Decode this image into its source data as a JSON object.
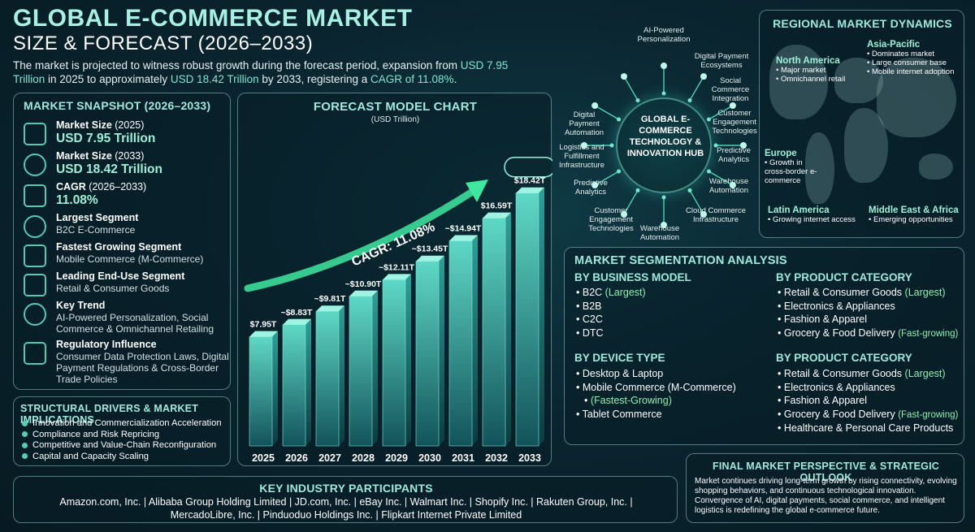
{
  "header": {
    "title_line1": "GLOBAL E-COMMERCE MARKET",
    "title_line2": "SIZE & FORECAST (2026–2033)",
    "intro_a": "The market is projected to witness robust growth during the forecast period, expansion from ",
    "intro_hl1": "USD 7.95 Trillion",
    "intro_b": " in 2025 to approximately ",
    "intro_hl2": "USD 18.42 Trillion",
    "intro_c": " by 2033, registering a ",
    "intro_hl3": "CAGR of 11.08%",
    "intro_d": "."
  },
  "snapshot": {
    "title": "MARKET SNAPSHOT (2026–2033)",
    "items": [
      {
        "icon": "bar-chart-icon",
        "label": "Market Size",
        "paren": "(2025)",
        "value": "USD 7.95 Trillion"
      },
      {
        "icon": "dollar-coins-icon",
        "label": "Market Size",
        "paren": "(2033)",
        "value": "USD 18.42 Trillion"
      },
      {
        "icon": "growth-chart-icon",
        "label": "CAGR",
        "paren": "(2026–2033)",
        "value": "11.08%"
      },
      {
        "icon": "speedometer-icon",
        "label": "Largest Segment",
        "paren": "",
        "sub": "B2C E-Commerce"
      },
      {
        "icon": "rocket-icon",
        "label": "Fastest Growing Segment",
        "paren": "",
        "sub": "Mobile Commerce (M-Commerce)"
      },
      {
        "icon": "shopping-cart-icon",
        "label": "Leading End-Use Segment",
        "paren": "",
        "sub": "Retail & Consumer Goods"
      },
      {
        "icon": "trend-badge-icon",
        "label": "Key Trend",
        "paren": "",
        "sub": "AI-Powered Personalization, Social Commerce & Omnichannel Retailing"
      },
      {
        "icon": "document-shield-icon",
        "label": "Regulatory Influence",
        "paren": "",
        "sub": "Consumer Data Protection Laws, Digital Payment Regulations & Cross-Border Trade Policies"
      }
    ]
  },
  "drivers": {
    "title": "STRUCTURAL DRIVERS & MARKET IMPLICATIONS",
    "items": [
      "Innovation and Commercialization Acceleration",
      "Compliance and Risk Repricing",
      "Competitive and Value-Chain Reconfiguration",
      "Capital and Capacity Scaling"
    ]
  },
  "chart_data": {
    "type": "bar",
    "title": "FORECAST MODEL CHART",
    "subtitle": "(USD Trillion)",
    "categories": [
      "2025",
      "2026",
      "2027",
      "2028",
      "2029",
      "2030",
      "2031",
      "2032",
      "2033"
    ],
    "values": [
      7.95,
      8.83,
      9.81,
      10.9,
      12.11,
      13.45,
      14.94,
      16.59,
      18.42
    ],
    "data_labels": [
      "$7.95T",
      "~$8.83T",
      "~$9.81T",
      "~$10.90T",
      "~$12.11T",
      "~$13.45T",
      "~$14.94T",
      "$16.59T",
      "$18.42T"
    ],
    "annotation": "CAGR: 11.08%",
    "ylim": [
      0,
      20
    ],
    "grid": false,
    "colors": {
      "bar": "#2aa7a0",
      "bar_top": "#9ff3e3",
      "arrow": "#3fe8a0"
    }
  },
  "hub": {
    "center_text": "GLOBAL E-COMMERCE TECHNOLOGY & INNOVATION HUB",
    "labels": [
      "AI-Powered Personalization",
      "Digital Payment Ecosystems",
      "Social Commerce Integration",
      "Customer Engagement Technologies",
      "Predictive Analytics",
      "Warehouse Automation",
      "Cloud Commerce Infrastructure",
      "Warehouse Automation",
      "Customer Engagement Technologies",
      "Predictive Analytics",
      "Logistics and Fulfillment Infrastructure",
      "Digital Payment Automation"
    ]
  },
  "regional": {
    "title": "REGIONAL MARKET DYNAMICS",
    "regions": [
      {
        "name": "North America",
        "points": [
          "Major market",
          "Omnichannel retail"
        ]
      },
      {
        "name": "Asia-Pacific",
        "points": [
          "Dominates market",
          "Large consumer base",
          "Mobile internet adoption"
        ]
      },
      {
        "name": "Europe",
        "points": [
          "Growth in cross-border e-commerce"
        ]
      },
      {
        "name": "Latin America",
        "points": [
          "Growing internet access"
        ]
      },
      {
        "name": "Middle East & Africa",
        "points": [
          "Emerging opportunities"
        ]
      }
    ]
  },
  "segmentation": {
    "title": "MARKET SEGMENTATION ANALYSIS",
    "business_model": {
      "heading": "BY BUSINESS MODEL",
      "items": [
        {
          "t": "B2C",
          "n": "(Largest)"
        },
        {
          "t": "B2B",
          "n": ""
        },
        {
          "t": "C2C",
          "n": ""
        },
        {
          "t": "DTC",
          "n": ""
        }
      ]
    },
    "product_a": {
      "heading": "BY PRODUCT CATEGORY",
      "items": [
        {
          "t": "Retail & Consumer Goods",
          "n": "(Largest)"
        },
        {
          "t": "Electronics & Appliances",
          "n": ""
        },
        {
          "t": "Fashion & Apparel",
          "n": ""
        },
        {
          "t": "Grocery & Food Delivery",
          "n": "(Fast-growing)"
        }
      ]
    },
    "device": {
      "heading": "BY DEVICE TYPE",
      "items": [
        {
          "t": "Desktop & Laptop",
          "n": ""
        },
        {
          "t": "Mobile Commerce (M-Commerce)",
          "n": "(Fastest-Growing)"
        },
        {
          "t": "Tablet Commerce",
          "n": ""
        }
      ]
    },
    "product_b": {
      "heading": "BY PRODUCT CATEGORY",
      "items": [
        {
          "t": "Retail & Consumer Goods",
          "n": "(Largest)"
        },
        {
          "t": "Electronics & Appliances",
          "n": ""
        },
        {
          "t": "Fashion & Apparel",
          "n": ""
        },
        {
          "t": "Grocery & Food Delivery",
          "n": "(Fast-growing)"
        },
        {
          "t": "Healthcare & Personal Care Products",
          "n": ""
        }
      ]
    }
  },
  "final": {
    "title": "FINAL MARKET PERSPECTIVE & STRATEGIC OUTLOOK",
    "text": "Market continues driving long-term growth by rising connectivity, evolving shopping behaviors, and continuous technological innovation. Convergence of AI, digital payments, social commerce, and intelligent logistics is redefining the global e-commerce future."
  },
  "participants": {
    "title": "KEY INDUSTRY PARTICIPANTS",
    "line1": "Amazon.com, Inc.  |  Alibaba Group Holding Limited  |  JD.com, Inc.  |  eBay Inc.  |  Walmart Inc.  |  Shopify Inc.  |  Rakuten Group, Inc.  |",
    "line2": "MercadoLibre, Inc.  |  Pinduoduo Holdings Inc.  |  Flipkart Internet Private Limited"
  }
}
